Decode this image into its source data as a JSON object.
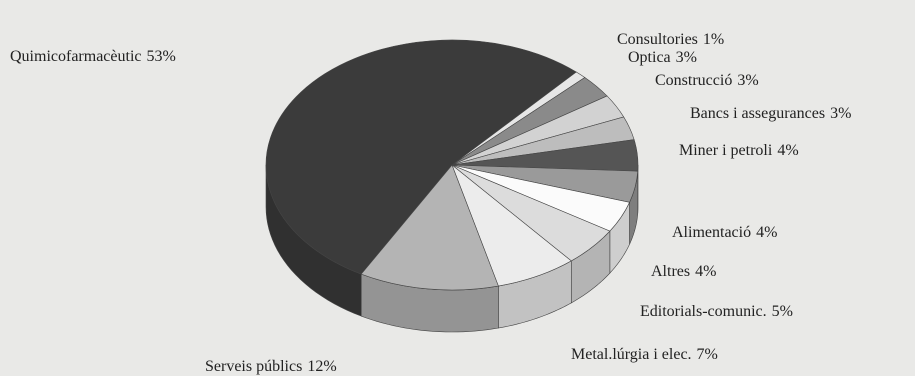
{
  "chart_data": {
    "type": "pie",
    "categories": [
      "Quimicofarmacèutic",
      "Consultories",
      "Optica",
      "Construcció",
      "Bancs i assegurances",
      "Miner i petroli",
      "Alimentació",
      "Altres",
      "Editorials-comunic.",
      "Metal.lúrgia i elec.",
      "Serveis públics"
    ],
    "values": [
      53,
      1,
      3,
      3,
      3,
      4,
      4,
      4,
      5,
      7,
      12
    ],
    "value_labels": [
      "53%",
      "1%",
      "3%",
      "3%",
      "3%",
      "4%",
      "4%",
      "4%",
      "5%",
      "7%",
      "12%"
    ],
    "colors": [
      "#3b3b3b",
      "#e6e6e6",
      "#8a8a8a",
      "#d2d2d2",
      "#bdbdbd",
      "#555555",
      "#9a9a9a",
      "#fbfbfb",
      "#dcdcdc",
      "#ececec",
      "#b4b4b4"
    ]
  }
}
